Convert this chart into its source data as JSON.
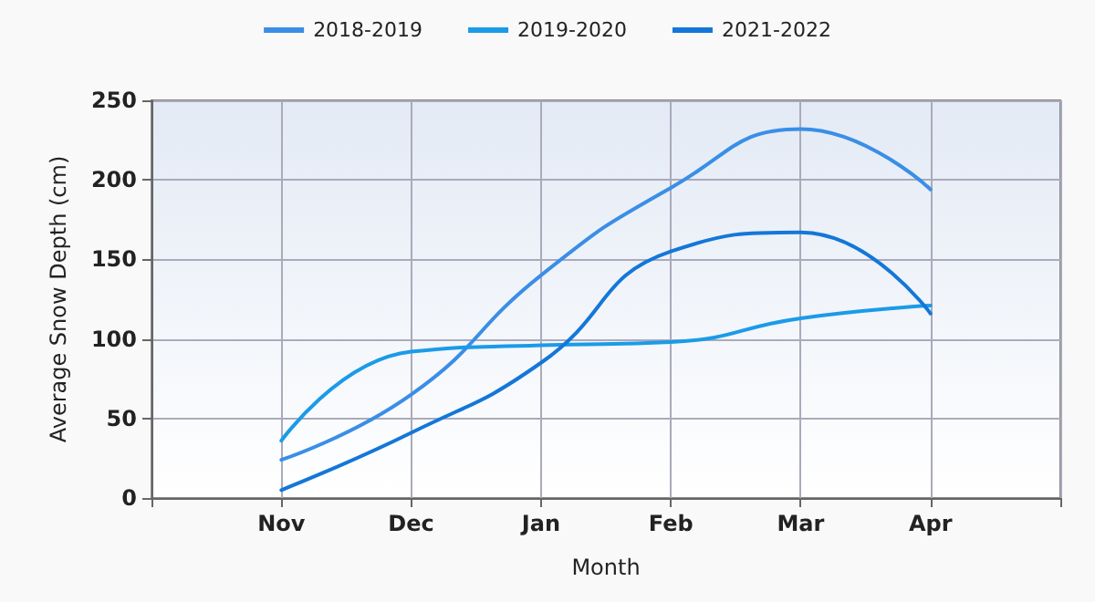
{
  "chart_data": {
    "type": "line",
    "xlabel": "Month",
    "ylabel": "Average Snow Depth (cm)",
    "categories": [
      null,
      "Nov",
      "Dec",
      "Jan",
      "Feb",
      "Mar",
      "Apr",
      null
    ],
    "series": [
      {
        "name": "2018-2019",
        "color": "#3a8ee6",
        "values": [
          null,
          24,
          65,
          140,
          195,
          232,
          194,
          null
        ]
      },
      {
        "name": "2019-2020",
        "color": "#1a9be8",
        "values": [
          null,
          36,
          92,
          96,
          98,
          113,
          121,
          null
        ]
      },
      {
        "name": "2021-2022",
        "color": "#1477d8",
        "values": [
          null,
          5,
          41,
          85,
          155,
          167,
          116,
          null
        ]
      }
    ],
    "ylim": [
      0,
      250
    ],
    "yticks": [
      0,
      50,
      100,
      150,
      200,
      250
    ],
    "grid": true,
    "legend": "top",
    "marker": "none",
    "line_style": "solid"
  }
}
